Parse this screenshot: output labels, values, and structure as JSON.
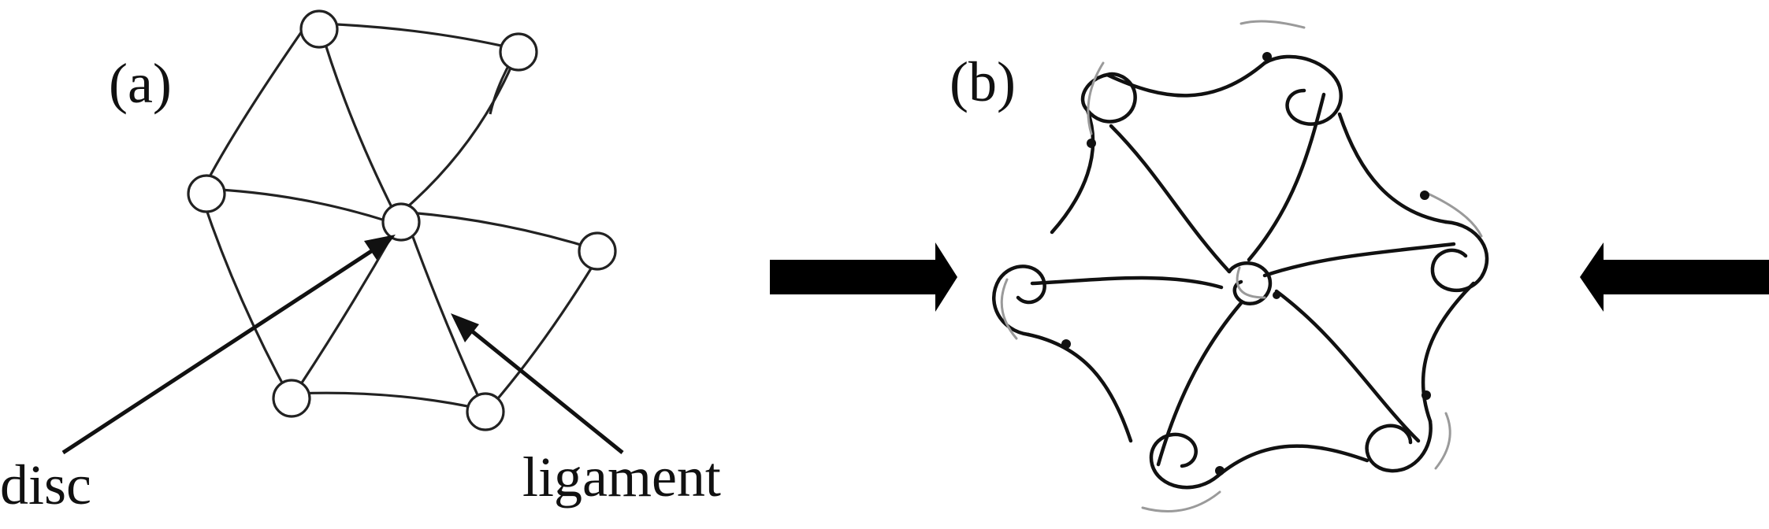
{
  "figure": {
    "panel_a": {
      "label": "(a)"
    },
    "panel_b": {
      "label": "(b)"
    },
    "annotations": {
      "disc": "disc",
      "ligament": "ligament"
    },
    "colors": {
      "line": "#222222",
      "motion_trace": "#9a9a9a",
      "arrow": "#000000"
    },
    "panel_b_rotation": "counter-clockwise"
  }
}
